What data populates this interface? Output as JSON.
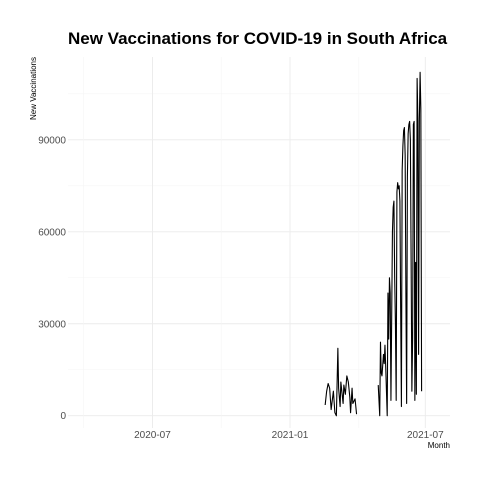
{
  "chart_data": {
    "type": "line",
    "title": "New Vaccinations for COVID-19 in South Africa",
    "xlabel": "Month",
    "ylabel": "New Vaccinations",
    "x_ticks": [
      "2020-07",
      "2021-01",
      "2021-07"
    ],
    "y_ticks": [
      "0",
      "30000",
      "60000",
      "90000"
    ],
    "xlim": [
      "2020-03-10",
      "2021-08-03"
    ],
    "ylim": [
      -4000,
      117000
    ],
    "grid": true,
    "series": [
      {
        "values": [
          [
            "2021-02-17",
            3500
          ],
          [
            "2021-02-19",
            8000
          ],
          [
            "2021-02-21",
            10500
          ],
          [
            "2021-02-23",
            9000
          ],
          [
            "2021-02-25",
            2000
          ],
          [
            "2021-02-28",
            8000
          ],
          [
            "2021-03-02",
            1000
          ],
          [
            "2021-03-04",
            0
          ],
          [
            "2021-03-06",
            22000
          ],
          [
            "2021-03-07",
            9000
          ],
          [
            "2021-03-09",
            3000
          ],
          [
            "2021-03-10",
            11000
          ],
          [
            "2021-03-13",
            4000
          ],
          [
            "2021-03-14",
            10000
          ],
          [
            "2021-03-16",
            7000
          ],
          [
            "2021-03-18",
            13000
          ],
          [
            "2021-03-20",
            11000
          ],
          [
            "2021-03-22",
            6000
          ],
          [
            "2021-03-23",
            1000
          ],
          [
            "2021-03-25",
            9000
          ],
          [
            "2021-03-26",
            4000
          ],
          [
            "2021-03-29",
            5500
          ],
          [
            "2021-03-31",
            500
          ],
          null,
          [
            "2021-04-29",
            10000
          ],
          [
            "2021-05-01",
            0
          ],
          [
            "2021-05-02",
            24000
          ],
          [
            "2021-05-03",
            14000
          ],
          [
            "2021-05-04",
            13000
          ],
          [
            "2021-05-06",
            20000
          ],
          [
            "2021-05-07",
            17000
          ],
          [
            "2021-05-08",
            23000
          ],
          [
            "2021-05-09",
            16000
          ],
          [
            "2021-05-11",
            0
          ],
          [
            "2021-05-12",
            40000
          ],
          [
            "2021-05-13",
            25000
          ],
          [
            "2021-05-14",
            45000
          ],
          [
            "2021-05-15",
            40000
          ],
          [
            "2021-05-16",
            5000
          ],
          [
            "2021-05-18",
            60000
          ],
          [
            "2021-05-19",
            68000
          ],
          [
            "2021-05-20",
            70000
          ],
          [
            "2021-05-21",
            45000
          ],
          [
            "2021-05-22",
            30000
          ],
          [
            "2021-05-23",
            5000
          ],
          [
            "2021-05-24",
            73000
          ],
          [
            "2021-05-25",
            76000
          ],
          [
            "2021-05-26",
            74000
          ],
          [
            "2021-05-27",
            75000
          ],
          [
            "2021-05-28",
            70000
          ],
          [
            "2021-05-29",
            35000
          ],
          [
            "2021-05-30",
            3000
          ],
          [
            "2021-05-31",
            80000
          ],
          [
            "2021-06-01",
            88000
          ],
          [
            "2021-06-02",
            93000
          ],
          [
            "2021-06-03",
            94000
          ],
          [
            "2021-06-04",
            85000
          ],
          [
            "2021-06-05",
            40000
          ],
          [
            "2021-06-06",
            4000
          ],
          [
            "2021-06-07",
            78000
          ],
          [
            "2021-06-08",
            92000
          ],
          [
            "2021-06-09",
            95000
          ],
          [
            "2021-06-10",
            96000
          ],
          [
            "2021-06-11",
            90000
          ],
          [
            "2021-06-12",
            50000
          ],
          [
            "2021-06-13",
            8000
          ],
          [
            "2021-06-14",
            25000
          ],
          [
            "2021-06-15",
            95000
          ],
          [
            "2021-06-16",
            96000
          ],
          [
            "2021-06-17",
            5000
          ],
          [
            "2021-06-18",
            50000
          ],
          [
            "2021-06-19",
            7000
          ],
          [
            "2021-06-20",
            110000
          ],
          [
            "2021-06-21",
            97000
          ],
          [
            "2021-06-22",
            20000
          ],
          [
            "2021-06-23",
            96000
          ],
          [
            "2021-06-24",
            112000
          ],
          [
            "2021-06-25",
            100000
          ],
          [
            "2021-06-26",
            8000
          ]
        ]
      }
    ]
  }
}
